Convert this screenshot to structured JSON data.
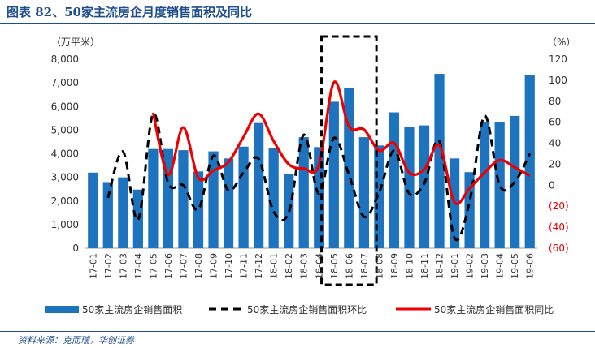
{
  "figure_title": "图表 82、50家主流房企月度销售面积及同比",
  "source_note": "资料来源：克而瑞，华创证券",
  "chart_data": {
    "type": "bar",
    "categories": [
      "17-01",
      "17-02",
      "17-03",
      "17-04",
      "17-05",
      "17-06",
      "17-07",
      "17-08",
      "17-09",
      "17-10",
      "17-11",
      "17-12",
      "18-01",
      "18-02",
      "18-03",
      "18-04",
      "18-05",
      "18-06",
      "18-07",
      "18-08",
      "18-09",
      "18-10",
      "18-11",
      "18-12",
      "19-01",
      "19-02",
      "19-03",
      "19-04",
      "19-05",
      "19-06"
    ],
    "left_axis": {
      "unit_label": "（万平米）",
      "ylim": [
        0,
        8000
      ],
      "ticks": [
        "0",
        "1,000",
        "2,000",
        "3,000",
        "4,000",
        "5,000",
        "6,000",
        "7,000",
        "8,000"
      ]
    },
    "right_axis": {
      "unit_label": "（%）",
      "ylim": [
        -60,
        120
      ],
      "ticks": [
        "(60)",
        "(40)",
        "(20)",
        "0",
        "20",
        "40",
        "60",
        "80",
        "100",
        "120"
      ]
    },
    "series": [
      {
        "name": "50家主流房企销售面积",
        "type": "bar",
        "axis": "left",
        "color": "#1e73be",
        "values": [
          3200,
          2800,
          3000,
          2480,
          4200,
          4200,
          4150,
          3250,
          4100,
          3800,
          4300,
          5300,
          4250,
          3150,
          4700,
          4280,
          6200,
          6780,
          4700,
          4350,
          5750,
          5150,
          5200,
          7380,
          3800,
          3220,
          5350,
          5330,
          5600,
          7320
        ]
      },
      {
        "name": "50家主流房企销售面积环比",
        "type": "line",
        "axis": "right",
        "color": "#000000",
        "dash": "dashed",
        "values": [
          null,
          -12,
          32,
          -33,
          68,
          2,
          0,
          -23,
          28,
          -5,
          12,
          25,
          -25,
          -26,
          48,
          -8,
          45,
          10,
          -30,
          -7,
          33,
          -8,
          2,
          42,
          -50,
          -16,
          66,
          0,
          3,
          30
        ]
      },
      {
        "name": "50家主流房企销售面积同比",
        "type": "line",
        "axis": "right",
        "color": "#ee0000",
        "dash": "solid",
        "values": [
          null,
          null,
          null,
          null,
          69,
          10,
          55,
          7,
          14,
          22,
          46,
          68,
          42,
          20,
          16,
          19,
          98,
          56,
          53,
          33,
          40,
          12,
          15,
          38,
          -16,
          -3,
          12,
          24,
          17,
          9
        ]
      }
    ],
    "highlight": {
      "from": "18-05",
      "to": "18-07"
    },
    "legend_position": "bottom"
  }
}
